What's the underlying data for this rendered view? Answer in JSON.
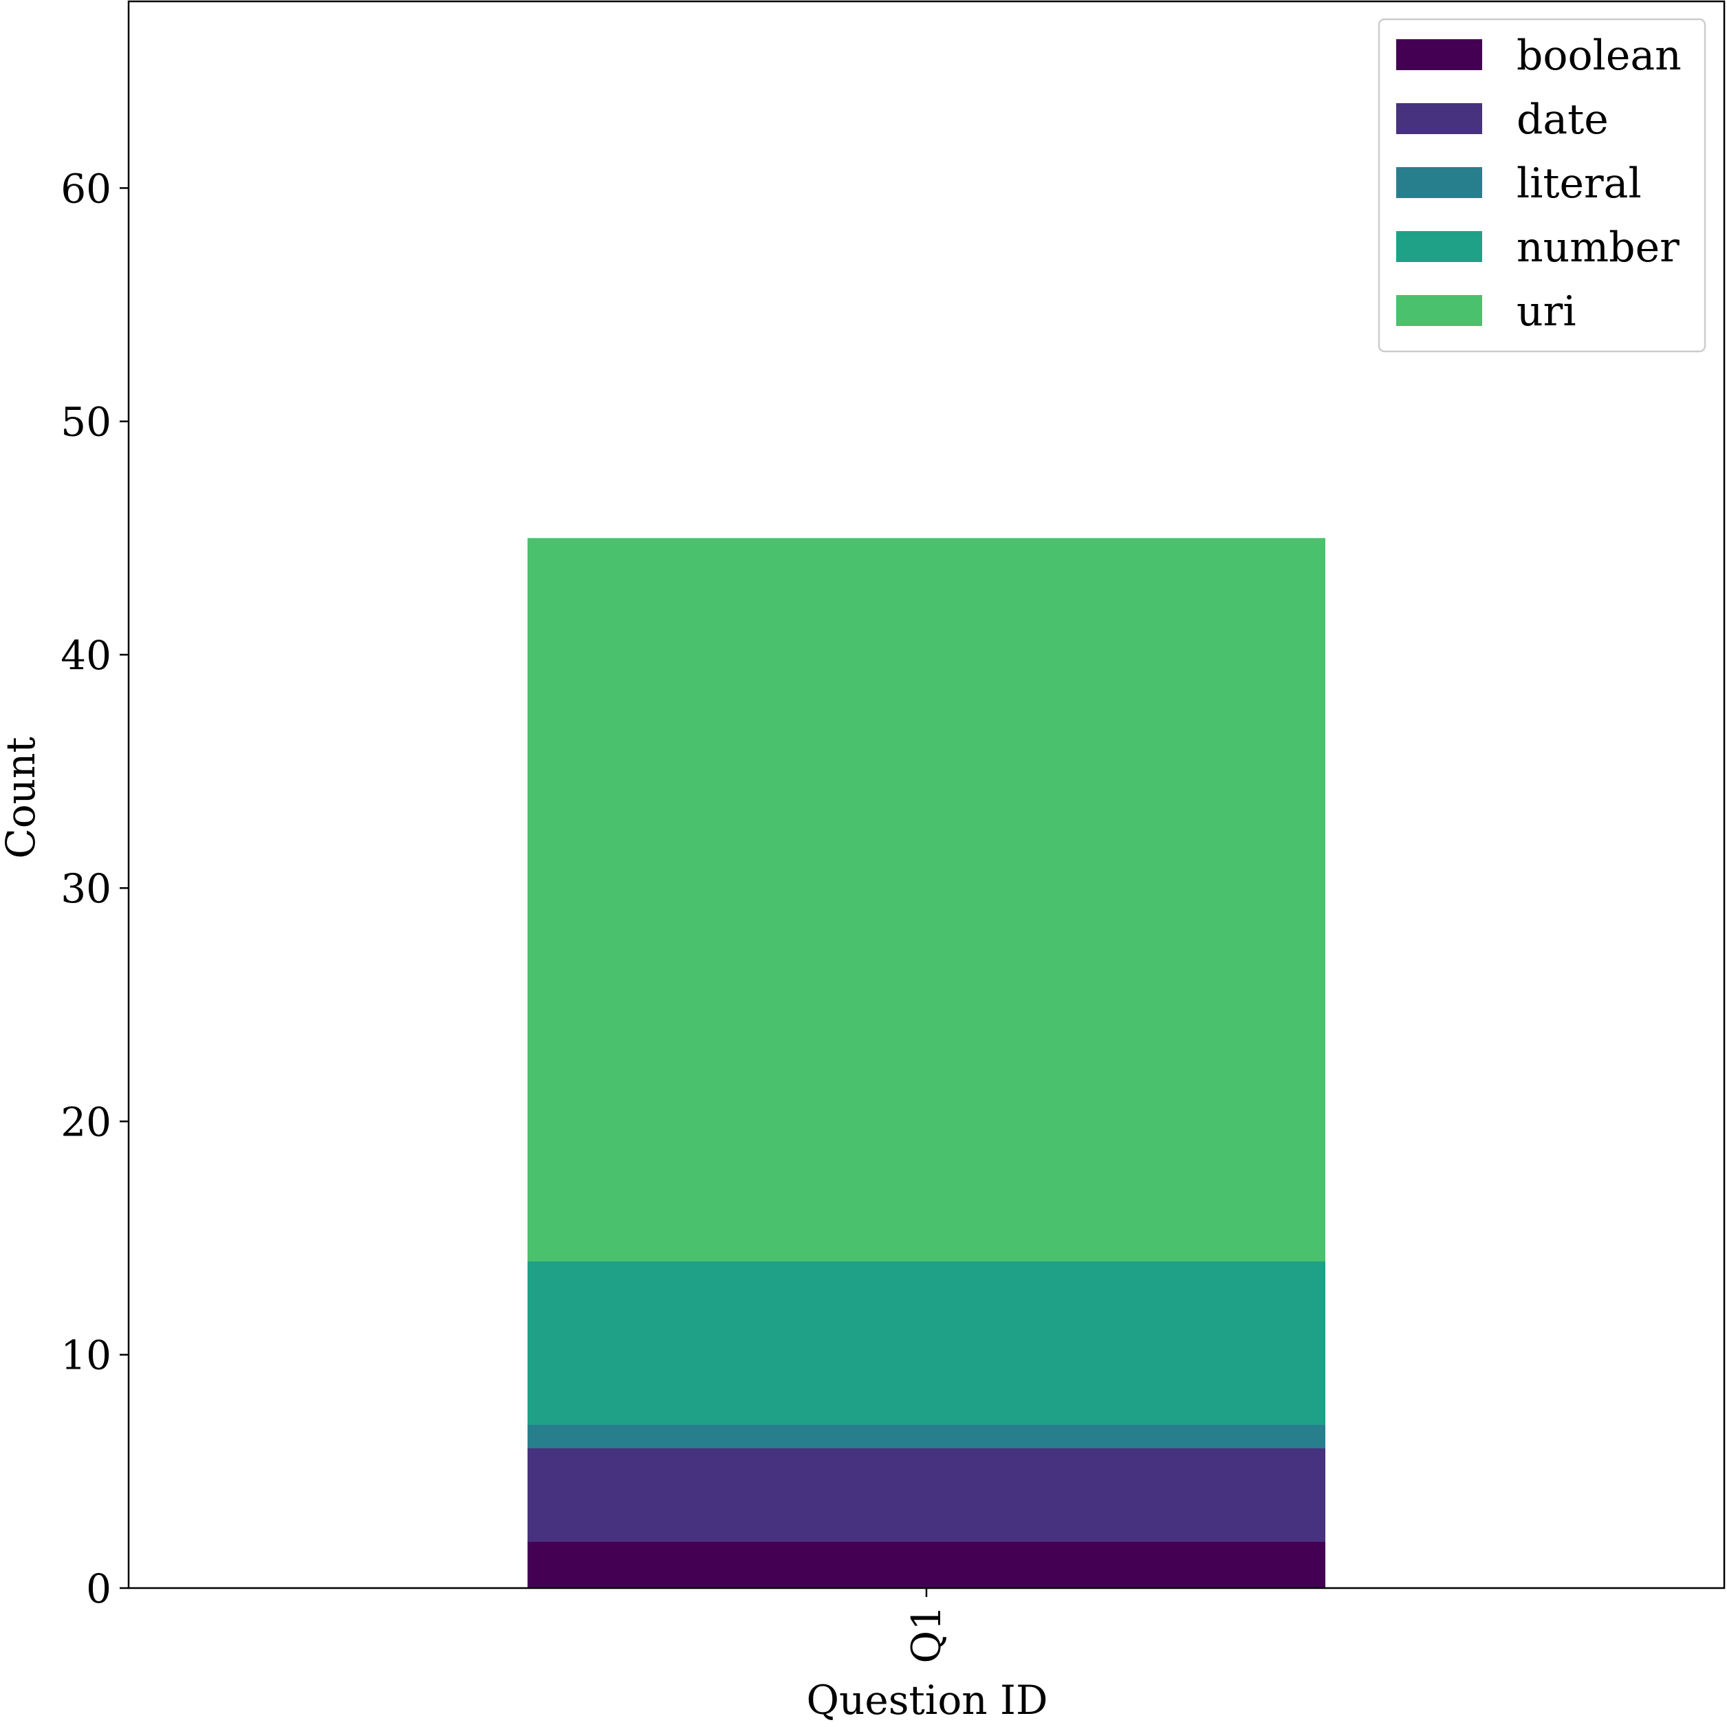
{
  "chart_data": {
    "type": "bar",
    "stacked": true,
    "categories": [
      "Q1"
    ],
    "series": [
      {
        "name": "boolean",
        "values": [
          2
        ],
        "color": "#440154"
      },
      {
        "name": "date",
        "values": [
          4
        ],
        "color": "#46327e"
      },
      {
        "name": "literal",
        "values": [
          1
        ],
        "color": "#277f8e"
      },
      {
        "name": "number",
        "values": [
          7
        ],
        "color": "#1fa187"
      },
      {
        "name": "uri",
        "values": [
          31
        ],
        "color": "#4ac16d"
      }
    ],
    "title": "",
    "xlabel": "Question ID",
    "ylabel": "Count",
    "ylim": [
      0,
      68
    ],
    "yticks": [
      0,
      10,
      20,
      30,
      40,
      50,
      60
    ],
    "xtick_rotation": "vertical",
    "grid": false,
    "legend": "top-right"
  }
}
